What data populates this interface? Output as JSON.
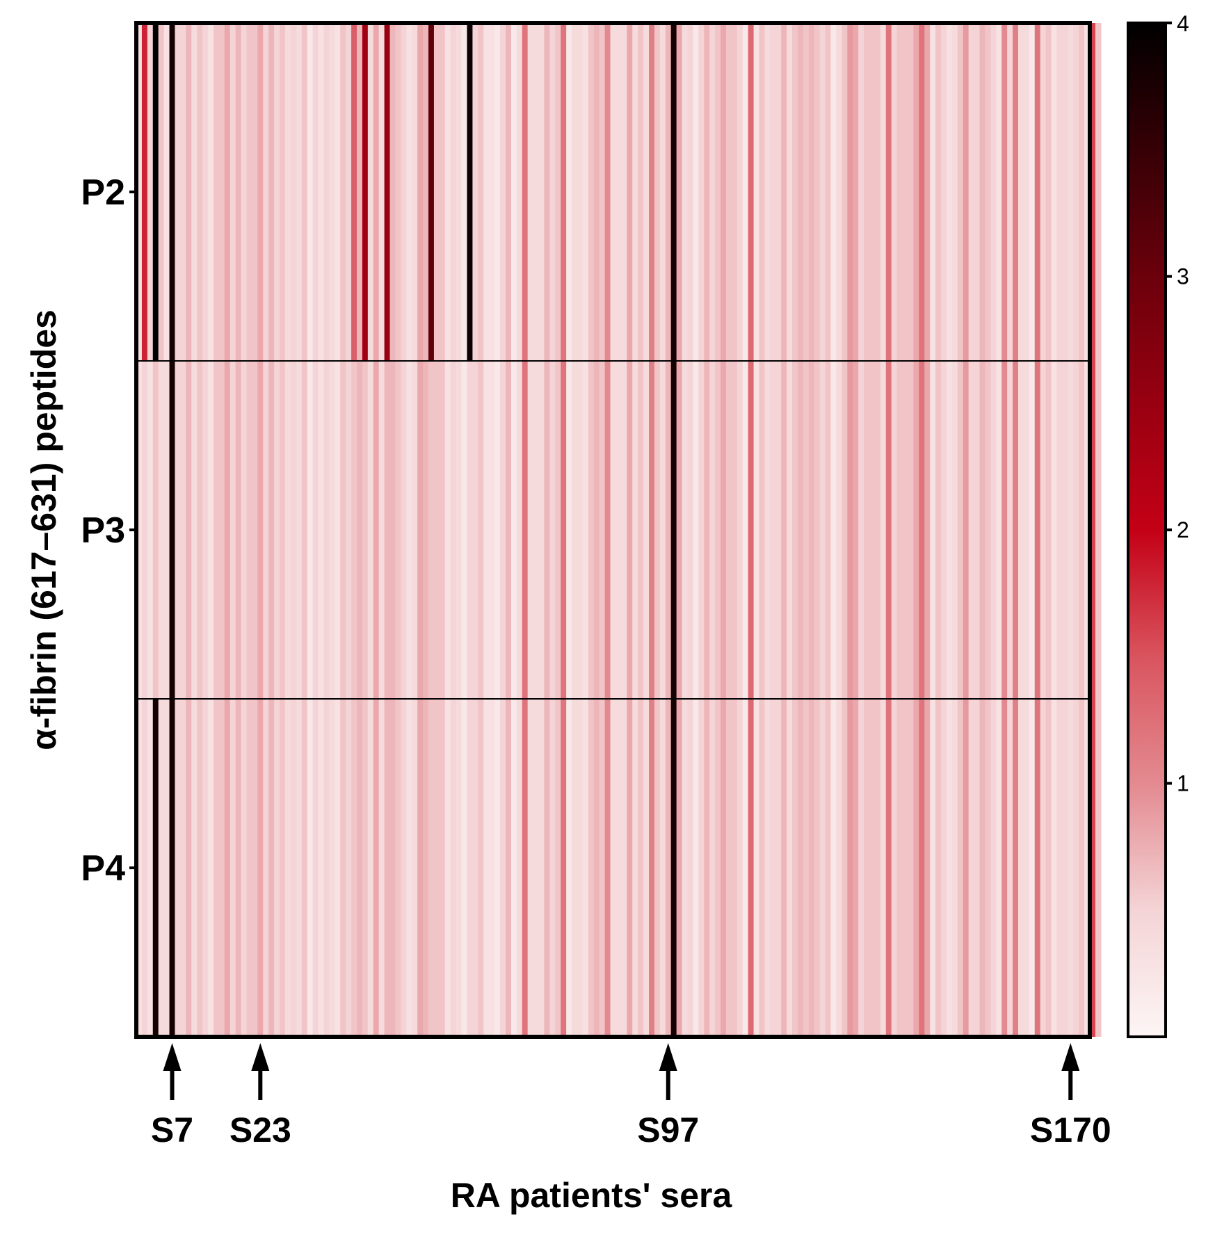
{
  "chart_data": {
    "type": "heatmap",
    "title": "",
    "xlabel": "RA patients' sera",
    "ylabel": "α-fibrin (617–631) peptides",
    "rows": [
      "P2",
      "P3",
      "P4"
    ],
    "n_columns": 173,
    "color_scale": {
      "min": 0,
      "max": 4,
      "ticks": [
        "1",
        "2",
        "3",
        "4"
      ],
      "stops": [
        {
          "v": 0.0,
          "color": "#fdf5f5"
        },
        {
          "v": 0.5,
          "color": "#f4d4d6"
        },
        {
          "v": 1.0,
          "color": "#e38a90"
        },
        {
          "v": 1.5,
          "color": "#d9545e"
        },
        {
          "v": 2.0,
          "color": "#c40016"
        },
        {
          "v": 3.0,
          "color": "#6b000b"
        },
        {
          "v": 4.0,
          "color": "#000000"
        }
      ]
    },
    "highlight_columns": [
      {
        "label": "S7",
        "index": 7
      },
      {
        "label": "S23",
        "index": 23
      },
      {
        "label": "S97",
        "index": 97
      },
      {
        "label": "S170",
        "index": 170
      }
    ],
    "values": [
      [
        0.3,
        1.8,
        0.5,
        4.0,
        0.6,
        0.3,
        3.8,
        0.5,
        0.5,
        0.7,
        0.4,
        0.6,
        0.5,
        0.3,
        0.6,
        0.6,
        0.8,
        0.5,
        0.7,
        0.5,
        0.6,
        0.6,
        0.8,
        0.5,
        0.7,
        0.5,
        0.6,
        0.4,
        0.5,
        0.4,
        0.6,
        0.2,
        0.5,
        0.3,
        0.5,
        0.4,
        0.3,
        0.6,
        0.5,
        1.4,
        0.7,
        2.4,
        0.4,
        0.8,
        0.4,
        2.5,
        0.7,
        0.6,
        0.5,
        0.3,
        0.4,
        0.8,
        0.7,
        3.1,
        0.6,
        0.6,
        0.3,
        0.5,
        0.4,
        0.2,
        3.9,
        0.5,
        0.6,
        0.3,
        0.3,
        0.2,
        0.5,
        0.7,
        0.2,
        0.4,
        1.2,
        0.4,
        0.4,
        0.4,
        0.7,
        0.5,
        0.6,
        1.2,
        0.2,
        0.4,
        0.4,
        0.3,
        0.6,
        0.7,
        0.6,
        1.0,
        0.4,
        0.4,
        0.4,
        0.8,
        0.4,
        0.6,
        0.4,
        1.1,
        0.6,
        0.4,
        0.7,
        3.8,
        0.8,
        0.4,
        0.5,
        0.2,
        0.5,
        0.7,
        0.5,
        0.6,
        0.8,
        0.6,
        0.6,
        0.5,
        0.2,
        1.3,
        0.3,
        0.6,
        0.4,
        0.5,
        0.5,
        0.7,
        0.4,
        0.6,
        0.7,
        0.6,
        0.7,
        0.6,
        0.5,
        0.6,
        0.2,
        0.4,
        0.6,
        0.9,
        0.8,
        0.5,
        0.6,
        0.6,
        0.6,
        0.4,
        1.2,
        0.5,
        0.6,
        0.6,
        0.6,
        0.8,
        1.2,
        0.8,
        0.3,
        0.6,
        0.5,
        0.3,
        0.4,
        0.6,
        0.9,
        0.5,
        0.5,
        0.7,
        0.6,
        0.5,
        0.3,
        1.0,
        0.5,
        1.1,
        0.4,
        0.4,
        0.2,
        1.2,
        0.5,
        0.6,
        0.3,
        0.5,
        0.5,
        0.4,
        0.5,
        0.6,
        0.3,
        1.6,
        0.6
      ],
      [
        0.3,
        0.5,
        0.3,
        0.6,
        0.4,
        0.4,
        3.8,
        0.5,
        0.5,
        0.7,
        0.4,
        0.6,
        0.5,
        0.3,
        0.6,
        0.6,
        0.8,
        0.5,
        0.7,
        0.5,
        0.6,
        0.6,
        0.8,
        0.5,
        0.7,
        0.5,
        0.6,
        0.4,
        0.5,
        0.4,
        0.6,
        0.2,
        0.5,
        0.3,
        0.5,
        0.4,
        0.3,
        0.6,
        0.5,
        0.6,
        0.7,
        0.6,
        0.4,
        0.8,
        0.4,
        0.7,
        0.7,
        0.6,
        0.5,
        0.3,
        0.4,
        0.8,
        0.7,
        0.6,
        0.6,
        0.6,
        0.3,
        0.5,
        0.4,
        0.2,
        0.5,
        0.5,
        0.6,
        0.3,
        0.3,
        0.2,
        0.5,
        0.7,
        0.2,
        0.4,
        1.2,
        0.4,
        0.4,
        0.4,
        0.7,
        0.5,
        0.6,
        1.2,
        0.2,
        0.4,
        0.4,
        0.3,
        0.6,
        0.7,
        0.6,
        1.0,
        0.4,
        0.4,
        0.4,
        0.8,
        0.4,
        0.6,
        0.4,
        1.1,
        0.6,
        0.4,
        0.7,
        3.8,
        0.8,
        0.4,
        0.5,
        0.2,
        0.5,
        0.7,
        0.5,
        0.6,
        0.8,
        0.6,
        0.6,
        0.5,
        0.2,
        1.3,
        0.3,
        0.6,
        0.4,
        0.5,
        0.5,
        0.7,
        0.4,
        0.6,
        0.7,
        0.6,
        0.7,
        0.6,
        0.5,
        0.6,
        0.2,
        0.4,
        0.6,
        0.9,
        0.8,
        0.5,
        0.6,
        0.6,
        0.6,
        0.4,
        1.2,
        0.5,
        0.6,
        0.6,
        0.6,
        0.8,
        1.2,
        0.8,
        0.3,
        0.6,
        0.5,
        0.3,
        0.4,
        0.6,
        0.9,
        0.5,
        0.5,
        0.7,
        0.6,
        0.5,
        0.3,
        1.0,
        0.5,
        1.1,
        0.4,
        0.4,
        0.2,
        1.2,
        0.5,
        0.6,
        0.3,
        0.5,
        0.5,
        0.4,
        0.5,
        0.6,
        0.3,
        1.6,
        0.6
      ],
      [
        0.3,
        0.5,
        0.3,
        3.8,
        0.4,
        0.4,
        3.8,
        0.5,
        0.5,
        0.7,
        0.4,
        0.6,
        0.5,
        0.3,
        0.6,
        0.6,
        0.8,
        0.5,
        0.7,
        0.5,
        0.6,
        0.6,
        0.8,
        0.5,
        0.7,
        0.5,
        0.6,
        0.4,
        0.5,
        0.4,
        0.6,
        0.2,
        0.5,
        0.3,
        0.5,
        0.4,
        0.3,
        0.6,
        0.5,
        0.6,
        0.7,
        0.6,
        0.4,
        0.8,
        0.4,
        0.7,
        0.7,
        0.6,
        0.5,
        0.3,
        0.4,
        0.8,
        0.7,
        0.6,
        0.6,
        0.6,
        0.3,
        0.5,
        0.4,
        0.2,
        0.5,
        0.5,
        0.6,
        0.3,
        0.3,
        0.2,
        0.5,
        0.7,
        0.2,
        0.4,
        1.2,
        0.4,
        0.4,
        0.4,
        0.7,
        0.5,
        0.6,
        1.2,
        0.2,
        0.4,
        0.4,
        0.3,
        0.6,
        0.7,
        0.6,
        1.0,
        0.4,
        0.4,
        0.4,
        0.8,
        0.4,
        0.6,
        0.4,
        1.1,
        0.6,
        0.4,
        0.7,
        3.8,
        0.8,
        0.4,
        0.5,
        0.2,
        0.5,
        0.7,
        0.5,
        0.6,
        0.8,
        0.6,
        0.6,
        0.5,
        0.2,
        1.3,
        0.3,
        0.6,
        0.4,
        0.5,
        0.5,
        0.7,
        0.4,
        0.6,
        0.7,
        0.6,
        0.7,
        0.6,
        0.5,
        0.6,
        0.2,
        0.4,
        0.6,
        0.9,
        0.8,
        0.5,
        0.6,
        0.6,
        0.6,
        0.4,
        1.2,
        0.5,
        0.6,
        0.6,
        0.6,
        0.8,
        1.2,
        0.8,
        0.3,
        0.6,
        0.5,
        0.3,
        0.4,
        0.6,
        0.9,
        0.5,
        0.5,
        0.7,
        0.6,
        0.5,
        0.3,
        1.0,
        0.5,
        1.1,
        0.4,
        0.4,
        0.2,
        1.2,
        0.5,
        0.6,
        0.3,
        0.5,
        0.5,
        0.4,
        0.5,
        0.6,
        0.3,
        1.6,
        0.6
      ]
    ]
  }
}
